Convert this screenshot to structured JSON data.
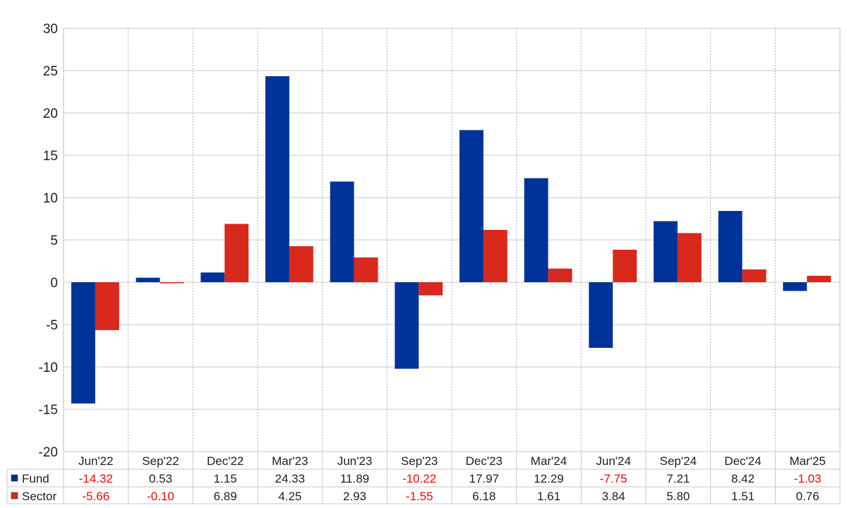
{
  "chart_data": {
    "type": "bar",
    "categories": [
      "Jun'22",
      "Sep'22",
      "Dec'22",
      "Mar'23",
      "Jun'23",
      "Sep'23",
      "Dec'23",
      "Mar'24",
      "Jun'24",
      "Sep'24",
      "Dec'24",
      "Mar'25"
    ],
    "series": [
      {
        "name": "Fund",
        "color": "#003399",
        "values": [
          -14.32,
          0.53,
          1.15,
          24.33,
          11.89,
          -10.22,
          17.97,
          12.29,
          -7.75,
          7.21,
          8.42,
          -1.03
        ]
      },
      {
        "name": "Sector",
        "color": "#d9291c",
        "values": [
          -5.66,
          -0.1,
          6.89,
          4.25,
          2.93,
          -1.55,
          6.18,
          1.61,
          3.84,
          5.8,
          1.51,
          0.76
        ]
      }
    ],
    "table_values": {
      "Fund": [
        "-14.32",
        "0.53",
        "1.15",
        "24.33",
        "11.89",
        "-10.22",
        "17.97",
        "12.29",
        "-7.75",
        "7.21",
        "8.42",
        "-1.03"
      ],
      "Sector": [
        "-5.66",
        "-0.10",
        "6.89",
        "4.25",
        "2.93",
        "-1.55",
        "6.18",
        "1.61",
        "3.84",
        "5.80",
        "1.51",
        "0.76"
      ]
    },
    "ylim": [
      -20,
      30
    ],
    "yticks": [
      -20,
      -15,
      -10,
      -5,
      0,
      5,
      10,
      15,
      20,
      25,
      30
    ],
    "grid": true,
    "legend": "bottom-table",
    "negative_color": "#ff0000",
    "title": "",
    "xlabel": "",
    "ylabel": ""
  }
}
